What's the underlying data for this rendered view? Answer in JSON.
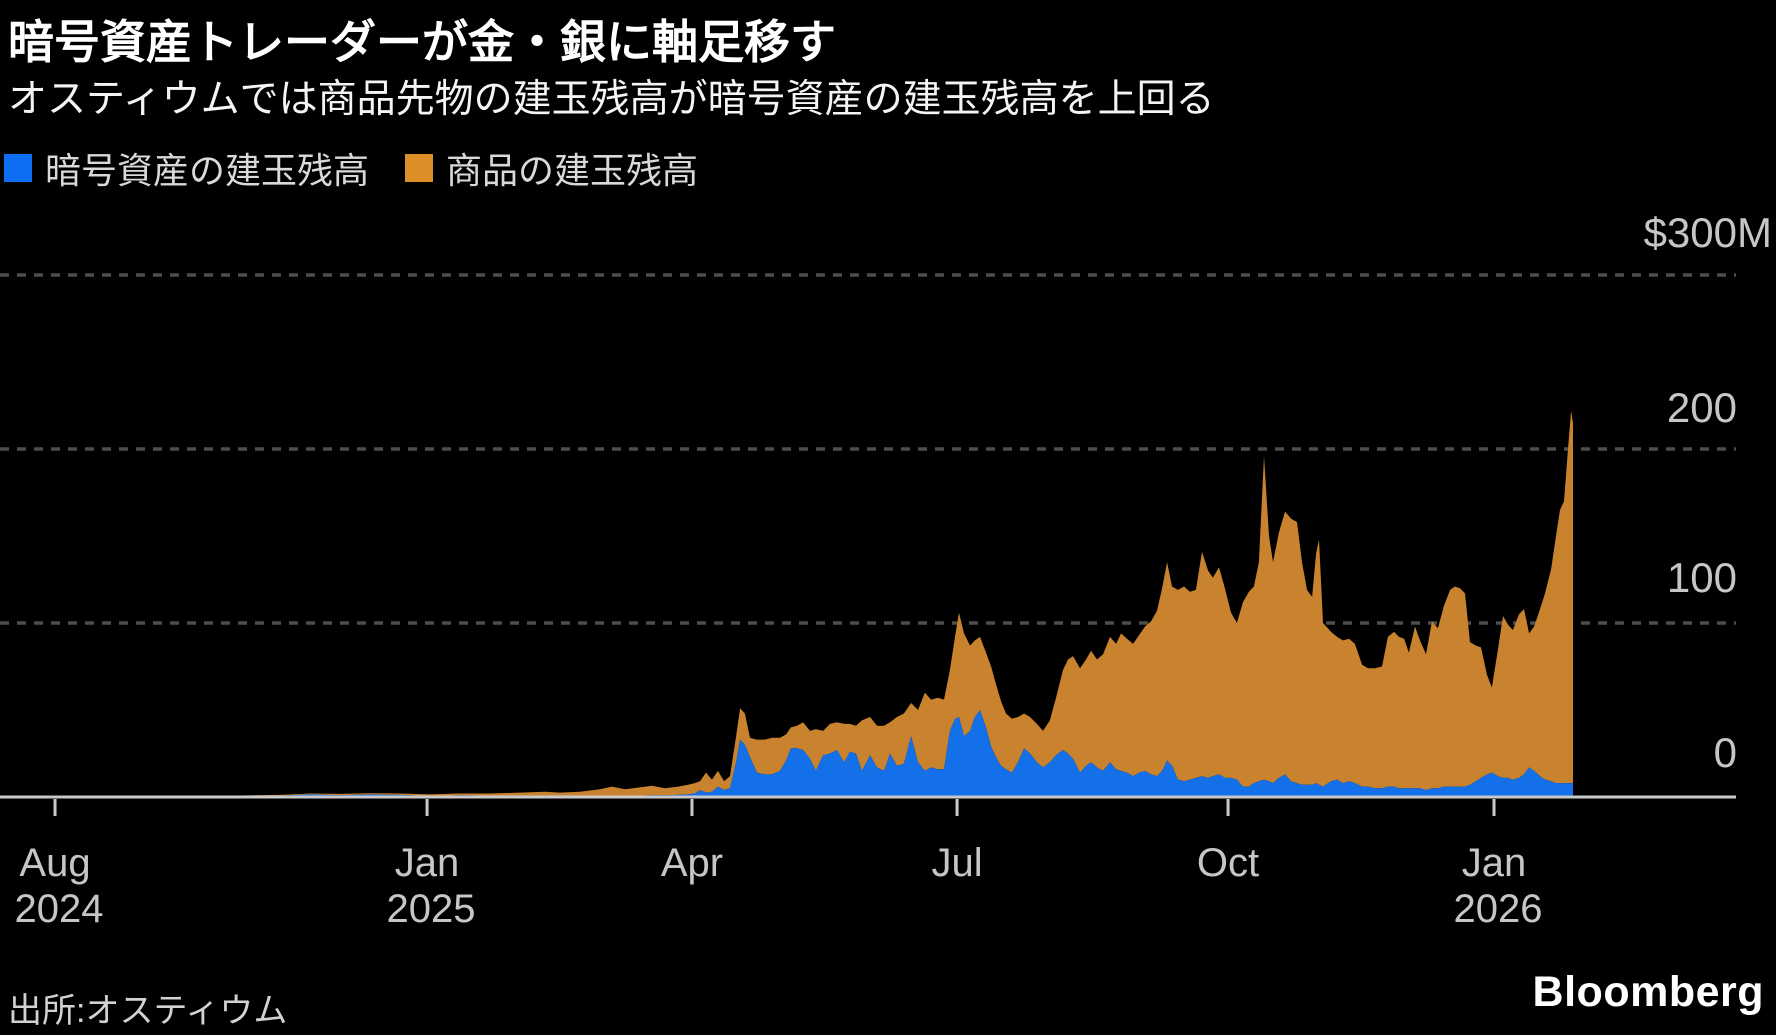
{
  "header": {
    "title": "暗号資産トレーダーが金・銀に軸足移す",
    "subtitle": "オスティウムでは商品先物の建玉残高が暗号資産の建玉残高を上回る"
  },
  "legend": {
    "items": [
      {
        "label": "暗号資産の建玉残高",
        "color": "#0d6ef2"
      },
      {
        "label": "商品の建玉残高",
        "color": "#dc8f28"
      }
    ]
  },
  "axis": {
    "y": {
      "labels": [
        {
          "text": "$300M",
          "value": 300
        },
        {
          "text": "200",
          "value": 200
        },
        {
          "text": "100",
          "value": 100
        },
        {
          "text": "0",
          "value": 0
        }
      ]
    },
    "x": {
      "ticks": [
        {
          "month": "Aug",
          "year": "2024",
          "pos": 0.0317
        },
        {
          "month": "Jan",
          "year": "2025",
          "pos": 0.246
        },
        {
          "month": "Apr",
          "year": "",
          "pos": 0.3986
        },
        {
          "month": "Jul",
          "year": "",
          "pos": 0.5513
        },
        {
          "month": "Oct",
          "year": "",
          "pos": 0.7074
        },
        {
          "month": "Jan",
          "year": "2026",
          "pos": 0.8606
        }
      ]
    }
  },
  "footer": {
    "source": "出所:オスティウム",
    "logo": "Bloomberg"
  },
  "chart_data": {
    "type": "area",
    "stacked": true,
    "unit": "USD millions",
    "title": "暗号資産トレーダーが金・銀に軸足移す",
    "x_axis": {
      "start": "Aug 2024",
      "end": "late Jan 2026",
      "tick_labels": [
        "Aug 2024",
        "Jan 2025",
        "Apr",
        "Jul",
        "Oct",
        "Jan 2026"
      ]
    },
    "ylim": [
      0,
      300
    ],
    "gridline_values": [
      300,
      200,
      100,
      0
    ],
    "gridline_color": "#4d4d4d",
    "axis_color": "#c9c9c9",
    "series_names": [
      "暗号資産の建玉残高 (crypto open interest, $M)",
      "商品の建玉残高 (commodity open interest, $M)"
    ],
    "colors": {
      "crypto": "#1470e8",
      "commodity": "#c9822d"
    },
    "points_format": "[x_fraction_of_axis, crypto_$M, commodity_$M]",
    "points": [
      [
        0.0,
        0,
        0
      ],
      [
        0.0576,
        0,
        0.3
      ],
      [
        0.1152,
        0,
        0.5
      ],
      [
        0.1613,
        0.8,
        0.4
      ],
      [
        0.1786,
        1.5,
        0.5
      ],
      [
        0.1959,
        1,
        0.8
      ],
      [
        0.2131,
        1.5,
        0.7
      ],
      [
        0.2304,
        1.2,
        0.8
      ],
      [
        0.2477,
        0.6,
        0.9
      ],
      [
        0.265,
        1,
        1
      ],
      [
        0.2823,
        0.8,
        1.2
      ],
      [
        0.2995,
        0.5,
        2
      ],
      [
        0.3139,
        0.4,
        2.6
      ],
      [
        0.3226,
        0.3,
        2.2
      ],
      [
        0.3341,
        0.4,
        2.6
      ],
      [
        0.3456,
        0.5,
        4
      ],
      [
        0.3525,
        0.6,
        5.4
      ],
      [
        0.36,
        0.5,
        4
      ],
      [
        0.3687,
        0.8,
        4.7
      ],
      [
        0.3756,
        1,
        5.5
      ],
      [
        0.3831,
        1,
        4
      ],
      [
        0.3906,
        1.2,
        4.8
      ],
      [
        0.3963,
        1.5,
        5.5
      ],
      [
        0.4003,
        2,
        6
      ],
      [
        0.4032,
        4,
        5
      ],
      [
        0.4067,
        2.5,
        11.5
      ],
      [
        0.4101,
        3,
        7
      ],
      [
        0.4136,
        6,
        9
      ],
      [
        0.4171,
        4,
        5
      ],
      [
        0.4205,
        5,
        7
      ],
      [
        0.424,
        20,
        15
      ],
      [
        0.4263,
        33,
        18
      ],
      [
        0.4291,
        30,
        18
      ],
      [
        0.432,
        23,
        11
      ],
      [
        0.436,
        14,
        19
      ],
      [
        0.4406,
        13,
        20
      ],
      [
        0.4447,
        13,
        21
      ],
      [
        0.4493,
        15,
        19
      ],
      [
        0.4528,
        21,
        15
      ],
      [
        0.4556,
        28,
        12
      ],
      [
        0.4591,
        28,
        13
      ],
      [
        0.4626,
        27,
        16
      ],
      [
        0.4666,
        22,
        16
      ],
      [
        0.47,
        15,
        24
      ],
      [
        0.4741,
        24,
        14
      ],
      [
        0.4781,
        25,
        17
      ],
      [
        0.4821,
        27,
        16
      ],
      [
        0.4862,
        20,
        22
      ],
      [
        0.4896,
        26,
        16
      ],
      [
        0.4931,
        25,
        16
      ],
      [
        0.4965,
        15,
        29
      ],
      [
        0.5012,
        24,
        22
      ],
      [
        0.5052,
        17,
        24
      ],
      [
        0.5092,
        15,
        26
      ],
      [
        0.5127,
        25,
        18
      ],
      [
        0.5167,
        18,
        28
      ],
      [
        0.5207,
        19,
        29
      ],
      [
        0.5248,
        35,
        19
      ],
      [
        0.5288,
        20,
        30
      ],
      [
        0.5328,
        15,
        45
      ],
      [
        0.5363,
        17,
        39
      ],
      [
        0.5403,
        16,
        41
      ],
      [
        0.5438,
        16,
        40
      ],
      [
        0.5472,
        38,
        35
      ],
      [
        0.5501,
        45,
        47
      ],
      [
        0.5524,
        46,
        60
      ],
      [
        0.5553,
        35,
        59
      ],
      [
        0.5588,
        38,
        49
      ],
      [
        0.5616,
        46,
        44
      ],
      [
        0.5645,
        50,
        42
      ],
      [
        0.568,
        40,
        43
      ],
      [
        0.5709,
        29,
        46
      ],
      [
        0.5737,
        23,
        42
      ],
      [
        0.5766,
        18,
        37
      ],
      [
        0.5795,
        16,
        32
      ],
      [
        0.5829,
        14,
        31
      ],
      [
        0.5864,
        20,
        26
      ],
      [
        0.5899,
        28,
        20
      ],
      [
        0.5933,
        25,
        21
      ],
      [
        0.5973,
        20,
        22
      ],
      [
        0.6008,
        17,
        21
      ],
      [
        0.6048,
        20,
        24
      ],
      [
        0.6083,
        24,
        33
      ],
      [
        0.6123,
        27,
        46
      ],
      [
        0.6152,
        25,
        54
      ],
      [
        0.6181,
        22,
        59
      ],
      [
        0.6221,
        14,
        60
      ],
      [
        0.6256,
        18,
        61
      ],
      [
        0.6285,
        20,
        64
      ],
      [
        0.6319,
        17,
        62
      ],
      [
        0.6354,
        15,
        67
      ],
      [
        0.6394,
        20,
        72
      ],
      [
        0.6429,
        16,
        72
      ],
      [
        0.6458,
        15,
        79
      ],
      [
        0.6492,
        14,
        77
      ],
      [
        0.6527,
        12,
        76
      ],
      [
        0.6561,
        14,
        79
      ],
      [
        0.6596,
        15,
        83
      ],
      [
        0.6631,
        13,
        88
      ],
      [
        0.6665,
        12,
        95
      ],
      [
        0.6694,
        15,
        105
      ],
      [
        0.6723,
        21,
        114
      ],
      [
        0.6751,
        18,
        103
      ],
      [
        0.6786,
        10,
        109
      ],
      [
        0.682,
        9,
        112
      ],
      [
        0.6855,
        10,
        108
      ],
      [
        0.6889,
        11,
        108
      ],
      [
        0.6924,
        12,
        129
      ],
      [
        0.6959,
        11,
        119
      ],
      [
        0.6987,
        12,
        114
      ],
      [
        0.7022,
        13,
        119
      ],
      [
        0.7056,
        11,
        109
      ],
      [
        0.7091,
        11,
        95
      ],
      [
        0.7125,
        10,
        90
      ],
      [
        0.716,
        6,
        106
      ],
      [
        0.7194,
        6,
        112
      ],
      [
        0.7223,
        8,
        113
      ],
      [
        0.7252,
        9,
        126
      ],
      [
        0.7281,
        10,
        186
      ],
      [
        0.731,
        9,
        141
      ],
      [
        0.7333,
        8,
        127
      ],
      [
        0.7367,
        11,
        141
      ],
      [
        0.7402,
        13,
        151
      ],
      [
        0.7437,
        9,
        151
      ],
      [
        0.7471,
        8,
        150
      ],
      [
        0.75,
        7,
        128
      ],
      [
        0.7529,
        7,
        112
      ],
      [
        0.7558,
        7,
        108
      ],
      [
        0.7581,
        8,
        132
      ],
      [
        0.7598,
        7,
        141
      ],
      [
        0.7621,
        6,
        94
      ],
      [
        0.7667,
        9,
        86
      ],
      [
        0.7702,
        10,
        82
      ],
      [
        0.7736,
        8,
        82
      ],
      [
        0.7771,
        9,
        82
      ],
      [
        0.7805,
        8,
        80
      ],
      [
        0.7846,
        6,
        70
      ],
      [
        0.788,
        6,
        68
      ],
      [
        0.7921,
        5,
        69
      ],
      [
        0.7961,
        5,
        70
      ],
      [
        0.7995,
        6,
        86
      ],
      [
        0.803,
        6,
        89
      ],
      [
        0.8059,
        5,
        87
      ],
      [
        0.8088,
        5,
        86
      ],
      [
        0.8116,
        5,
        78
      ],
      [
        0.8151,
        5,
        93
      ],
      [
        0.818,
        5,
        85
      ],
      [
        0.8214,
        4,
        78
      ],
      [
        0.8249,
        5,
        96
      ],
      [
        0.8283,
        5,
        92
      ],
      [
        0.8318,
        6,
        104
      ],
      [
        0.8353,
        6,
        113
      ],
      [
        0.8381,
        6,
        115
      ],
      [
        0.841,
        6,
        114
      ],
      [
        0.8439,
        6,
        111
      ],
      [
        0.8468,
        7,
        82
      ],
      [
        0.8502,
        9,
        78
      ],
      [
        0.8531,
        11,
        75
      ],
      [
        0.8566,
        13,
        57
      ],
      [
        0.8594,
        14,
        49
      ],
      [
        0.8629,
        12,
        73
      ],
      [
        0.8658,
        11,
        93
      ],
      [
        0.8687,
        11,
        88
      ],
      [
        0.8715,
        10,
        86
      ],
      [
        0.875,
        11,
        94
      ],
      [
        0.8779,
        13,
        95
      ],
      [
        0.8808,
        17,
        77
      ],
      [
        0.8837,
        15,
        83
      ],
      [
        0.8871,
        12,
        96
      ],
      [
        0.89,
        10,
        107
      ],
      [
        0.8935,
        9,
        122
      ],
      [
        0.8963,
        8,
        142
      ],
      [
        0.8986,
        8,
        157
      ],
      [
        0.9009,
        8,
        162
      ],
      [
        0.9032,
        8,
        192
      ],
      [
        0.905,
        8,
        214
      ],
      [
        0.9061,
        8,
        207
      ]
    ]
  }
}
